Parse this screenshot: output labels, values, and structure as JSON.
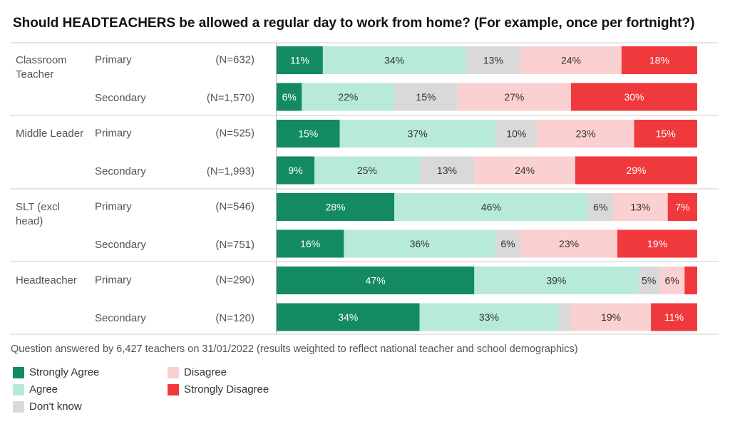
{
  "chart_data": {
    "type": "bar",
    "orientation": "horizontal-stacked-100",
    "title": "Should HEADTEACHERS be allowed a regular day to work from home? (For example, once per fortnight?)",
    "footnote": "Question answered by 6,427 teachers on 31/01/2022 (results weighted to reflect national teacher and school demographics)",
    "series": [
      {
        "name": "Strongly Agree",
        "color": "#138a63",
        "text_color": "#ffffff"
      },
      {
        "name": "Agree",
        "color": "#b8ead9",
        "text_color": "#333333"
      },
      {
        "name": "Don't know",
        "color": "#d9d9d9",
        "text_color": "#333333"
      },
      {
        "name": "Disagree",
        "color": "#fbd0d0",
        "text_color": "#333333"
      },
      {
        "name": "Strongly Disagree",
        "color": "#f0393d",
        "text_color": "#ffffff"
      }
    ],
    "groups": [
      {
        "label": [
          "Classroom",
          "Teacher"
        ],
        "rows": [
          {
            "phase": "Primary",
            "n": "(N=632)",
            "values": [
              11,
              34,
              13,
              24,
              18
            ],
            "labels": [
              "11%",
              "34%",
              "13%",
              "24%",
              "18%"
            ]
          },
          {
            "phase": "Secondary",
            "n": "(N=1,570)",
            "values": [
              6,
              22,
              15,
              27,
              30
            ],
            "labels": [
              "6%",
              "22%",
              "15%",
              "27%",
              "30%"
            ]
          }
        ]
      },
      {
        "label": [
          "Middle Leader"
        ],
        "rows": [
          {
            "phase": "Primary",
            "n": "(N=525)",
            "values": [
              15,
              37,
              10,
              23,
              15
            ],
            "labels": [
              "15%",
              "37%",
              "10%",
              "23%",
              "15%"
            ]
          },
          {
            "phase": "Secondary",
            "n": "(N=1,993)",
            "values": [
              9,
              25,
              13,
              24,
              29
            ],
            "labels": [
              "9%",
              "25%",
              "13%",
              "24%",
              "29%"
            ]
          }
        ]
      },
      {
        "label": [
          "SLT (excl",
          "head)"
        ],
        "rows": [
          {
            "phase": "Primary",
            "n": "(N=546)",
            "values": [
              28,
              46,
              6,
              13,
              7
            ],
            "labels": [
              "28%",
              "46%",
              "6%",
              "13%",
              "7%"
            ]
          },
          {
            "phase": "Secondary",
            "n": "(N=751)",
            "values": [
              16,
              36,
              6,
              23,
              19
            ],
            "labels": [
              "16%",
              "36%",
              "6%",
              "23%",
              "19%"
            ]
          }
        ]
      },
      {
        "label": [
          "Headteacher"
        ],
        "rows": [
          {
            "phase": "Primary",
            "n": "(N=290)",
            "values": [
              47,
              39,
              5,
              6,
              3
            ],
            "labels": [
              "47%",
              "39%",
              "5%",
              "6%",
              ""
            ]
          },
          {
            "phase": "Secondary",
            "n": "(N=120)",
            "values": [
              34,
              33,
              3,
              19,
              11
            ],
            "labels": [
              "34%",
              "33%",
              "",
              "19%",
              "11%"
            ]
          }
        ]
      }
    ],
    "xlim": [
      0,
      100
    ],
    "legend_position": "bottom-left"
  }
}
